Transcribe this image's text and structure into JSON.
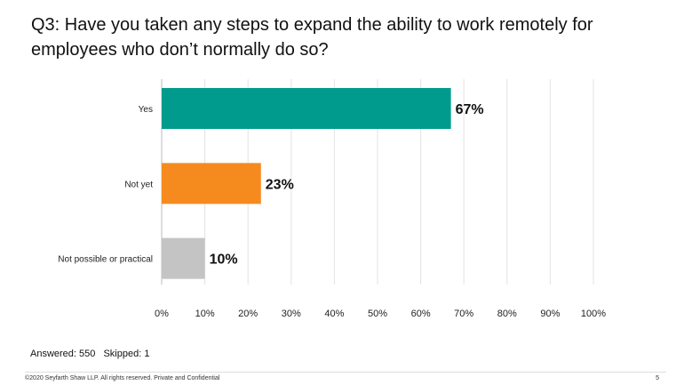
{
  "title": "Q3: Have you taken any steps to expand the ability to work remotely for employees who don’t normally do so?",
  "chart_data": {
    "type": "bar",
    "orientation": "horizontal",
    "categories": [
      "Yes",
      "Not yet",
      "Not possible or practical"
    ],
    "values": [
      67,
      23,
      10
    ],
    "value_labels": [
      "67%",
      "23%",
      "10%"
    ],
    "colors": [
      "#009B8D",
      "#F58B1F",
      "#C4C4C4"
    ],
    "xlim": [
      0,
      100
    ],
    "x_ticks": [
      "0%",
      "10%",
      "20%",
      "30%",
      "40%",
      "50%",
      "60%",
      "70%",
      "80%",
      "90%",
      "100%"
    ],
    "grid": true
  },
  "stats": {
    "answered": "Answered: 550",
    "skipped": "Skipped: 1"
  },
  "footer": {
    "copyright": "©2020 Seyfarth Shaw LLP. All rights reserved. Private and Confidential",
    "page": "5"
  }
}
